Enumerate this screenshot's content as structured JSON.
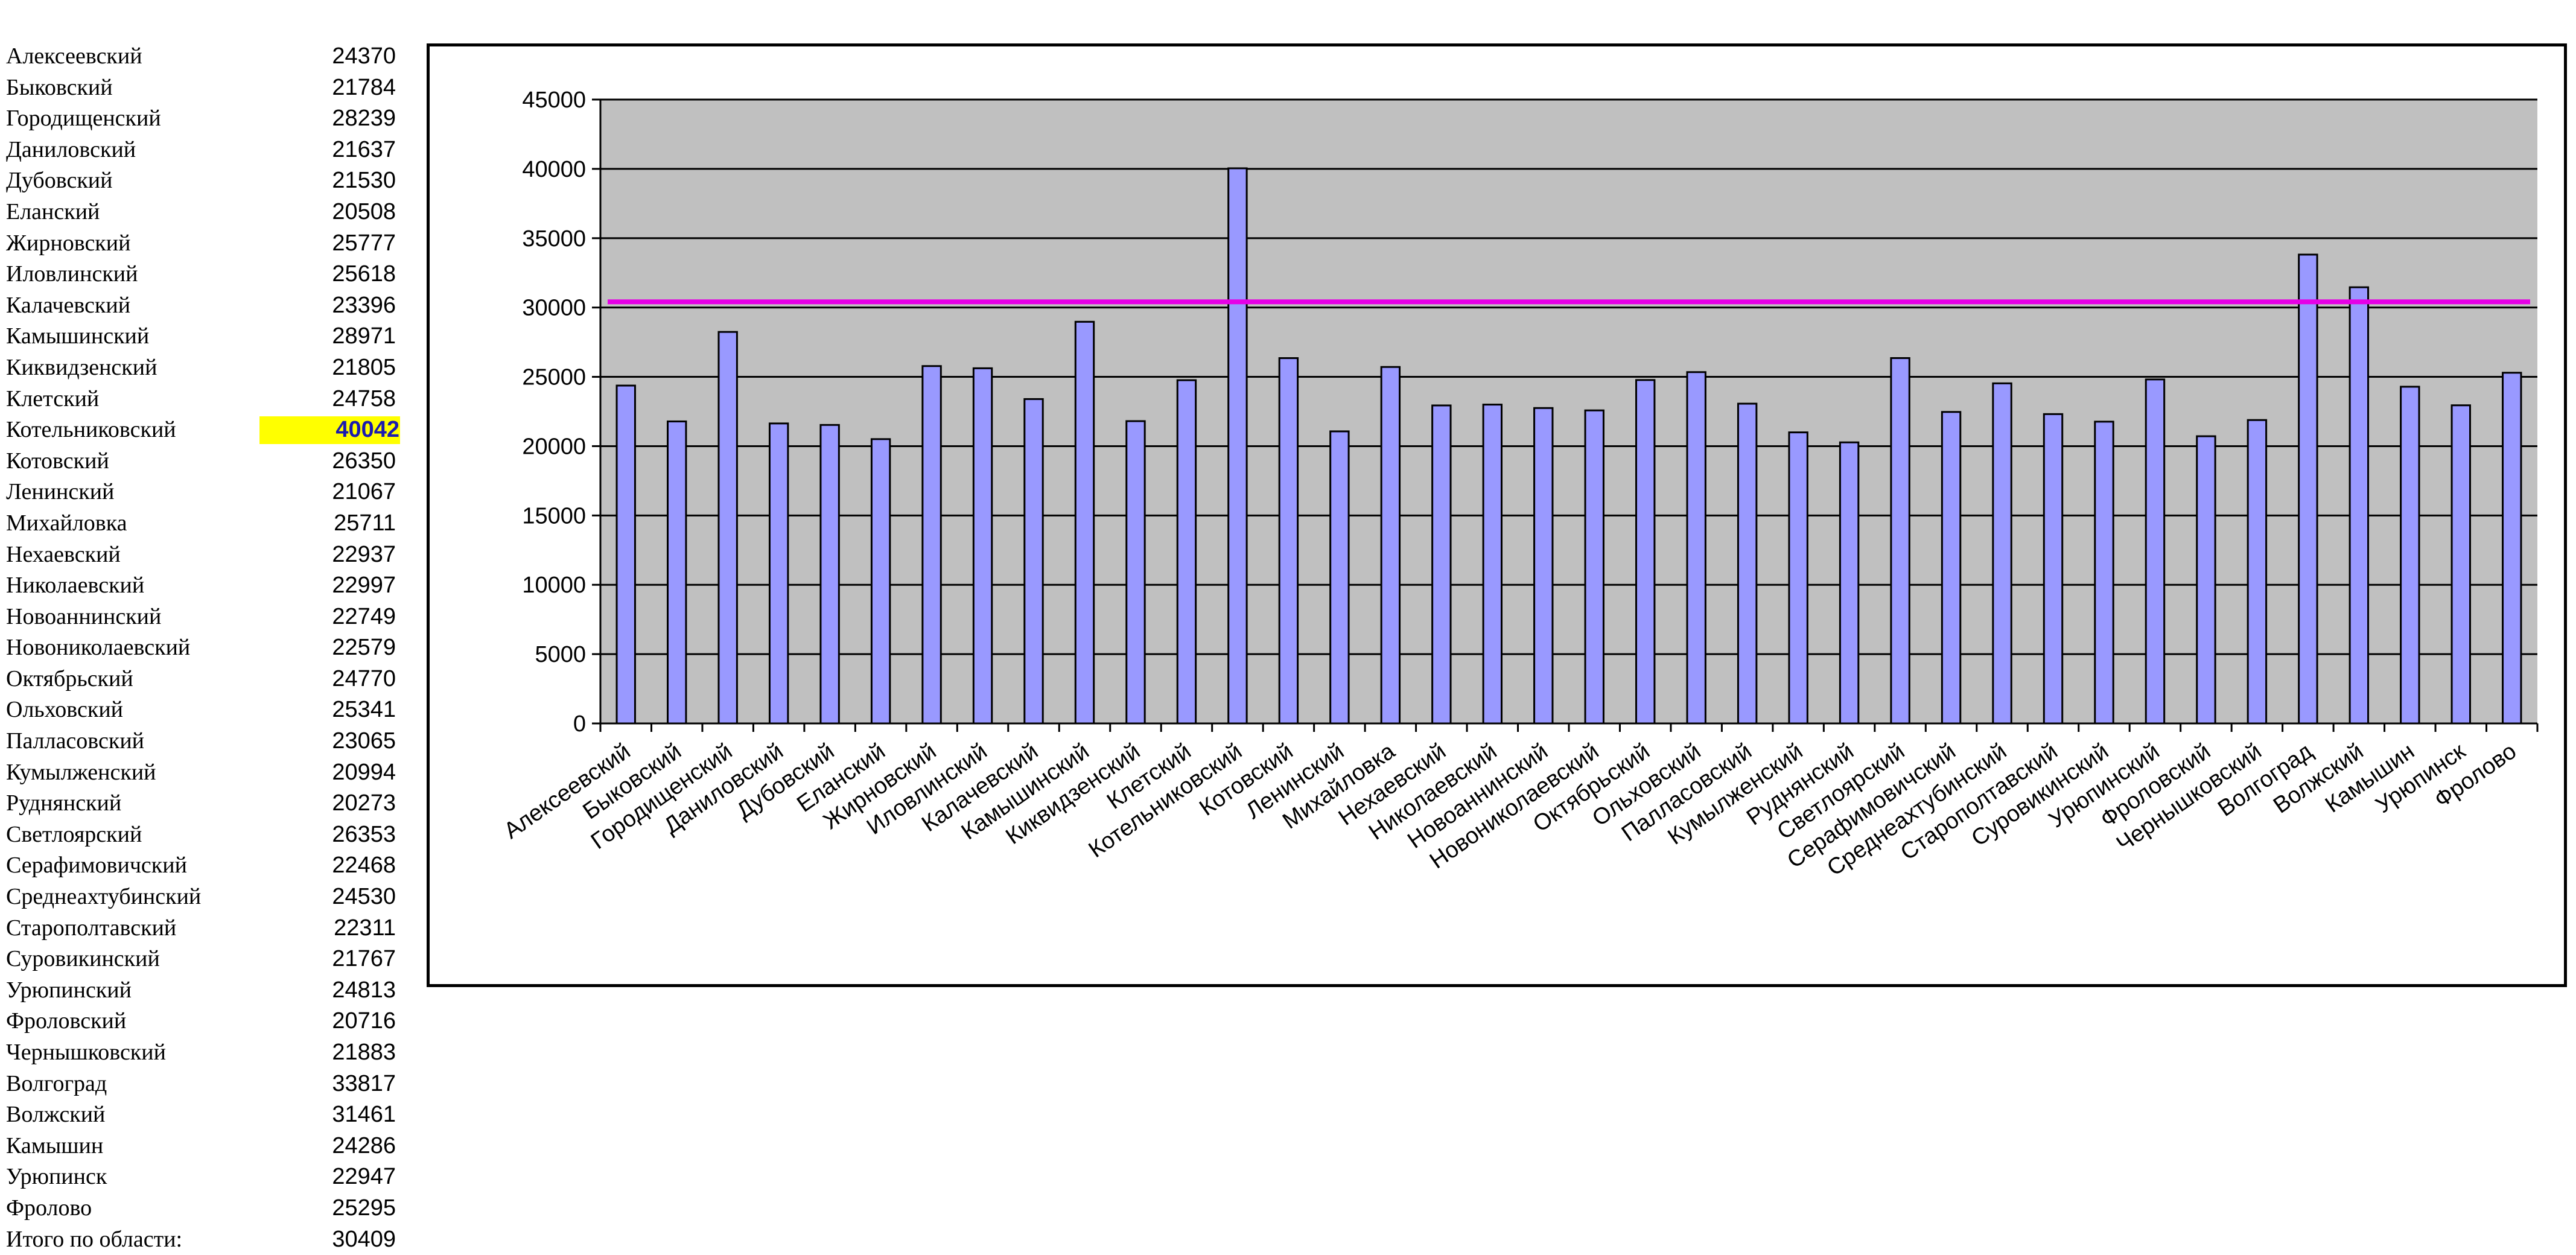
{
  "table": {
    "rows": [
      {
        "name": "Алексеевский",
        "value": "24370"
      },
      {
        "name": "Быковский",
        "value": "21784"
      },
      {
        "name": "Городищенский",
        "value": "28239"
      },
      {
        "name": "Даниловский",
        "value": "21637"
      },
      {
        "name": "Дубовский",
        "value": "21530"
      },
      {
        "name": "Еланский",
        "value": "20508"
      },
      {
        "name": "Жирновский",
        "value": "25777"
      },
      {
        "name": "Иловлинский",
        "value": "25618"
      },
      {
        "name": "Калачевский",
        "value": "23396"
      },
      {
        "name": "Камышинский",
        "value": "28971"
      },
      {
        "name": "Киквидзенский",
        "value": "21805"
      },
      {
        "name": "Клетский",
        "value": "24758"
      },
      {
        "name": "Котельниковский",
        "value": "40042",
        "highlight": true
      },
      {
        "name": "Котовский",
        "value": "26350"
      },
      {
        "name": "Ленинский",
        "value": "21067"
      },
      {
        "name": "Михайловка",
        "value": "25711"
      },
      {
        "name": "Нехаевский",
        "value": "22937"
      },
      {
        "name": "Николаевский",
        "value": "22997"
      },
      {
        "name": "Новоаннинский",
        "value": "22749"
      },
      {
        "name": "Новониколаевский",
        "value": "22579"
      },
      {
        "name": "Октябрьский",
        "value": "24770"
      },
      {
        "name": "Ольховский",
        "value": "25341"
      },
      {
        "name": "Палласовский",
        "value": "23065"
      },
      {
        "name": "Кумылженский",
        "value": "20994"
      },
      {
        "name": "Руднянский",
        "value": "20273"
      },
      {
        "name": "Светлоярский",
        "value": "26353"
      },
      {
        "name": "Серафимовичский",
        "value": "22468"
      },
      {
        "name": "Среднеахтубинский",
        "value": "24530"
      },
      {
        "name": "Старополтавский",
        "value": "22311"
      },
      {
        "name": "Суровикинский",
        "value": "21767"
      },
      {
        "name": "Урюпинский",
        "value": "24813"
      },
      {
        "name": "Фроловский",
        "value": "20716"
      },
      {
        "name": "Чернышковский",
        "value": "21883"
      },
      {
        "name": "Волгоград",
        "value": "33817"
      },
      {
        "name": "Волжский",
        "value": "31461"
      },
      {
        "name": "Камышин",
        "value": "24286"
      },
      {
        "name": "Урюпинск",
        "value": "22947"
      },
      {
        "name": "Фролово",
        "value": "25295"
      },
      {
        "name": "Итого по области:",
        "value": "30409"
      }
    ]
  },
  "chart_data": {
    "type": "bar",
    "categories": [
      "Алексеевский",
      "Быковский",
      "Городищенский",
      "Даниловский",
      "Дубовский",
      "Еланский",
      "Жирновский",
      "Иловлинский",
      "Калачевский",
      "Камышинский",
      "Киквидзенский",
      "Клетский",
      "Котельниковский",
      "Котовский",
      "Ленинский",
      "Михайловка",
      "Нехаевский",
      "Николаевский",
      "Новоаннинский",
      "Новониколаевский",
      "Октябрьский",
      "Ольховский",
      "Палласовский",
      "Кумылженский",
      "Руднянский",
      "Светлоярский",
      "Серафимовичский",
      "Среднеахтубинский",
      "Старополтавский",
      "Суровикинский",
      "Урюпинский",
      "Фроловский",
      "Чернышковский",
      "Волгоград",
      "Волжский",
      "Камышин",
      "Урюпинск",
      "Фролово"
    ],
    "values": [
      24370,
      21784,
      28239,
      21637,
      21530,
      20508,
      25777,
      25618,
      23396,
      28971,
      21805,
      24758,
      40042,
      26350,
      21067,
      25711,
      22937,
      22997,
      22749,
      22579,
      24770,
      25341,
      23065,
      20994,
      20273,
      26353,
      22468,
      24530,
      22311,
      21767,
      24813,
      20716,
      21883,
      33817,
      31461,
      24286,
      22947,
      25295
    ],
    "reference_line": {
      "value": 30409,
      "color": "#e600e6"
    },
    "ylim": [
      0,
      45000
    ],
    "yticks": [
      0,
      5000,
      10000,
      15000,
      20000,
      25000,
      30000,
      35000,
      40000,
      45000
    ],
    "ytick_labels": [
      "0",
      "5000",
      "10000",
      "15000",
      "20000",
      "25000",
      "30000",
      "35000",
      "40000",
      "45000"
    ],
    "title": "",
    "xlabel": "",
    "ylabel": "",
    "grid": true,
    "legend": "none",
    "colors": {
      "bar": "#9999ff",
      "plot_background": "#c0c0c0",
      "gridline": "#000000"
    }
  }
}
